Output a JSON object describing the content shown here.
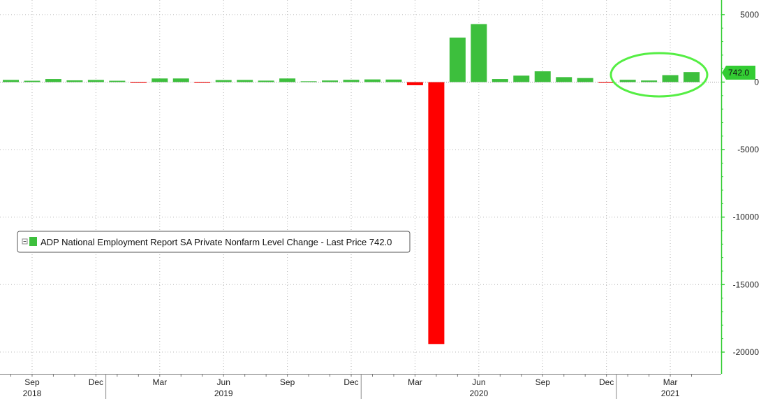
{
  "chart_data": {
    "type": "bar",
    "title": "",
    "xlabel": "",
    "ylabel": "",
    "ylim": [
      -21500,
      6000
    ],
    "y_ticks": [
      5000,
      0,
      -5000,
      -10000,
      -15000,
      -20000
    ],
    "y_tick_labels": [
      "5000",
      "0",
      "-5000",
      "-10000",
      "-15000",
      "-20000"
    ],
    "grid": true,
    "legend_position": "left-middle",
    "legend_label": "ADP National Employment Report SA Private Nonfarm Level Change - Last Price 742.0",
    "last_price_label": "742.0",
    "month_tick_labels": [
      {
        "label": "Sep",
        "index": 1
      },
      {
        "label": "Dec",
        "index": 4
      },
      {
        "label": "Mar",
        "index": 7
      },
      {
        "label": "Jun",
        "index": 10
      },
      {
        "label": "Sep",
        "index": 13
      },
      {
        "label": "Dec",
        "index": 16
      },
      {
        "label": "Mar",
        "index": 19
      },
      {
        "label": "Jun",
        "index": 22
      },
      {
        "label": "Sep",
        "index": 25
      },
      {
        "label": "Dec",
        "index": 28
      },
      {
        "label": "Mar",
        "index": 31
      }
    ],
    "year_labels": [
      {
        "label": "2018",
        "index": 1
      },
      {
        "label": "2019",
        "index": 10
      },
      {
        "label": "2020",
        "index": 22
      },
      {
        "label": "2021",
        "index": 31
      }
    ],
    "x": [
      "Aug 2018",
      "Sep 2018",
      "Oct 2018",
      "Nov 2018",
      "Dec 2018",
      "Jan 2019",
      "Feb 2019",
      "Mar 2019",
      "Apr 2019",
      "May 2019",
      "Jun 2019",
      "Jul 2019",
      "Aug 2019",
      "Sep 2019",
      "Oct 2019",
      "Nov 2019",
      "Dec 2019",
      "Jan 2020",
      "Feb 2020",
      "Mar 2020",
      "Apr 2020",
      "May 2020",
      "Jun 2020",
      "Jul 2020",
      "Aug 2020",
      "Sep 2020",
      "Oct 2020",
      "Nov 2020",
      "Dec 2020",
      "Jan 2021",
      "Feb 2021",
      "Mar 2021",
      "Apr 2021"
    ],
    "values": [
      163,
      100,
      230,
      130,
      160,
      100,
      -30,
      270,
      270,
      -40,
      150,
      160,
      110,
      270,
      50,
      120,
      170,
      200,
      190,
      -230,
      -19400,
      3300,
      4300,
      230,
      480,
      800,
      370,
      300,
      -60,
      170,
      120,
      517,
      742
    ],
    "colors": {
      "positive": "#3dbf3d",
      "negative": "#ff0000",
      "axis": "#33cc33",
      "grid": "#b5b5b5",
      "highlight": "#55ee44"
    }
  }
}
